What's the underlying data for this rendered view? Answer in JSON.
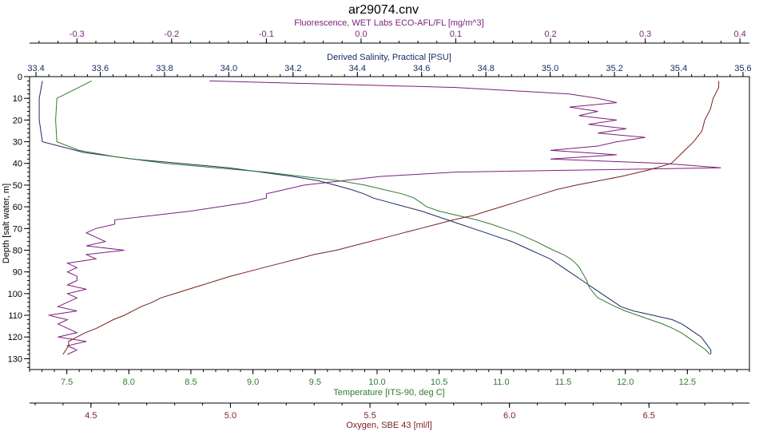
{
  "chart_data": {
    "type": "line",
    "title": "ar29074.cnv",
    "colors": {
      "fluorescence": "#7b1f7b",
      "salinity": "#1c2a66",
      "temperature": "#2e7d2e",
      "oxygen": "#7a1e1e"
    },
    "axes": {
      "fluorescence": {
        "label": "Fluorescence, WET Labs ECO-AFL/FL [mg/m^3]",
        "range": [
          -0.35,
          0.41
        ],
        "ticks": [
          -0.3,
          -0.2,
          -0.1,
          0.0,
          0.1,
          0.2,
          0.3,
          0.4
        ],
        "tick_labels": [
          "-0.3",
          "-0.2",
          "-0.1",
          "0.0",
          "0.1",
          "0.2",
          "0.3",
          "0.4"
        ],
        "placement": "top"
      },
      "salinity": {
        "label": "Derived Salinity, Practical [PSU]",
        "range": [
          33.38,
          35.62
        ],
        "ticks": [
          33.4,
          33.6,
          33.8,
          34.0,
          34.2,
          34.4,
          34.6,
          34.8,
          35.0,
          35.2,
          35.4,
          35.6
        ],
        "tick_labels": [
          "33.4",
          "33.6",
          "33.8",
          "34.0",
          "34.2",
          "34.4",
          "34.6",
          "34.8",
          "35.0",
          "35.2",
          "35.4",
          "35.6"
        ],
        "placement": "top"
      },
      "temperature": {
        "label": "Temperature [ITS-90, deg C]",
        "range": [
          7.2,
          13.0
        ],
        "ticks": [
          7.5,
          8.0,
          8.5,
          9.0,
          9.5,
          10.0,
          10.5,
          11.0,
          11.5,
          12.0,
          12.5
        ],
        "tick_labels": [
          "7.5",
          "8.0",
          "8.5",
          "9.0",
          "9.5",
          "10.0",
          "10.5",
          "11.0",
          "11.5",
          "12.0",
          "12.5"
        ],
        "placement": "bottom"
      },
      "oxygen": {
        "label": "Oxygen, SBE 43 [ml/l]",
        "range": [
          4.28,
          6.86
        ],
        "ticks": [
          4.5,
          5.0,
          5.5,
          6.0,
          6.5
        ],
        "tick_labels": [
          "4.5",
          "5.0",
          "5.5",
          "6.0",
          "6.5"
        ],
        "placement": "bottom"
      },
      "depth": {
        "label": "Depth [salt water, m]",
        "range": [
          0,
          135
        ],
        "ticks": [
          0,
          10,
          20,
          30,
          40,
          50,
          60,
          70,
          80,
          90,
          100,
          110,
          120,
          130
        ],
        "tick_labels": [
          "0",
          "10",
          "20",
          "30",
          "40",
          "50",
          "60",
          "70",
          "80",
          "90",
          "100",
          "110",
          "120",
          "130"
        ],
        "placement": "left",
        "inverted": true
      }
    },
    "series": [
      {
        "key": "fluorescence",
        "axis": "fluorescence",
        "depth": [
          2,
          5,
          8,
          10,
          12,
          14,
          16,
          18,
          20,
          22,
          24,
          26,
          28,
          30,
          32,
          34,
          36,
          38,
          40,
          42,
          44,
          46,
          48,
          50,
          52,
          54,
          56,
          58,
          60,
          62,
          64,
          66,
          68,
          70,
          72,
          74,
          76,
          78,
          80,
          82,
          84,
          86,
          88,
          90,
          92,
          94,
          96,
          98,
          100,
          102,
          104,
          106,
          108,
          110,
          112,
          114,
          116,
          118,
          120,
          122,
          124,
          126,
          128
        ],
        "values": [
          -0.16,
          0.1,
          0.22,
          0.25,
          0.27,
          0.22,
          0.25,
          0.23,
          0.27,
          0.24,
          0.28,
          0.25,
          0.3,
          0.27,
          0.25,
          0.2,
          0.27,
          0.2,
          0.32,
          0.38,
          0.1,
          0.02,
          -0.02,
          -0.06,
          -0.08,
          -0.1,
          -0.1,
          -0.12,
          -0.15,
          -0.18,
          -0.22,
          -0.26,
          -0.26,
          -0.28,
          -0.29,
          -0.28,
          -0.27,
          -0.29,
          -0.25,
          -0.29,
          -0.28,
          -0.31,
          -0.3,
          -0.31,
          -0.3,
          -0.3,
          -0.31,
          -0.29,
          -0.31,
          -0.3,
          -0.31,
          -0.32,
          -0.3,
          -0.33,
          -0.31,
          -0.32,
          -0.31,
          -0.3,
          -0.32,
          -0.29,
          -0.31,
          -0.3,
          -0.31
        ]
      },
      {
        "key": "salinity",
        "axis": "salinity",
        "depth": [
          2,
          10,
          20,
          30,
          35,
          38,
          40,
          42,
          44,
          46,
          48,
          50,
          52,
          54,
          56,
          58,
          60,
          62,
          64,
          66,
          68,
          70,
          72,
          74,
          76,
          78,
          80,
          82,
          84,
          86,
          88,
          90,
          92,
          94,
          96,
          98,
          100,
          102,
          104,
          106,
          108,
          110,
          112,
          114,
          116,
          118,
          120,
          122,
          124,
          126,
          128
        ],
        "values": [
          33.42,
          33.41,
          33.41,
          33.42,
          33.55,
          33.7,
          33.85,
          34.0,
          34.1,
          34.2,
          34.28,
          34.33,
          34.38,
          34.42,
          34.45,
          34.5,
          34.55,
          34.6,
          34.64,
          34.68,
          34.72,
          34.76,
          34.8,
          34.84,
          34.88,
          34.91,
          34.94,
          34.97,
          35.0,
          35.02,
          35.04,
          35.06,
          35.08,
          35.1,
          35.12,
          35.14,
          35.16,
          35.18,
          35.2,
          35.22,
          35.26,
          35.32,
          35.38,
          35.41,
          35.43,
          35.45,
          35.47,
          35.48,
          35.49,
          35.5,
          35.5
        ]
      },
      {
        "key": "temperature",
        "axis": "temperature",
        "depth": [
          2,
          10,
          20,
          30,
          34,
          37,
          40,
          42,
          44,
          46,
          48,
          50,
          52,
          54,
          56,
          58,
          60,
          62,
          64,
          66,
          68,
          70,
          72,
          74,
          76,
          78,
          80,
          82,
          84,
          86,
          88,
          90,
          92,
          94,
          96,
          98,
          100,
          102,
          104,
          106,
          108,
          110,
          112,
          114,
          116,
          118,
          120,
          122,
          124,
          126,
          128
        ],
        "values": [
          7.7,
          7.42,
          7.41,
          7.42,
          7.6,
          7.9,
          8.3,
          8.7,
          9.1,
          9.4,
          9.7,
          9.9,
          10.05,
          10.2,
          10.3,
          10.35,
          10.4,
          10.5,
          10.65,
          10.8,
          10.92,
          11.02,
          11.12,
          11.2,
          11.28,
          11.35,
          11.42,
          11.5,
          11.56,
          11.6,
          11.63,
          11.65,
          11.67,
          11.69,
          11.7,
          11.72,
          11.75,
          11.78,
          11.85,
          11.92,
          12.0,
          12.1,
          12.2,
          12.3,
          12.38,
          12.45,
          12.5,
          12.55,
          12.6,
          12.65,
          12.68
        ]
      },
      {
        "key": "oxygen",
        "axis": "oxygen",
        "depth": [
          2,
          5,
          10,
          15,
          20,
          25,
          30,
          35,
          40,
          43,
          46,
          48,
          50,
          52,
          54,
          56,
          58,
          60,
          62,
          64,
          66,
          68,
          70,
          72,
          74,
          76,
          78,
          80,
          82,
          84,
          86,
          88,
          90,
          92,
          94,
          96,
          98,
          100,
          102,
          104,
          106,
          108,
          110,
          112,
          114,
          116,
          118,
          120,
          122,
          124,
          126,
          128
        ],
        "values": [
          6.75,
          6.75,
          6.73,
          6.72,
          6.7,
          6.69,
          6.66,
          6.62,
          6.58,
          6.5,
          6.4,
          6.32,
          6.24,
          6.17,
          6.12,
          6.07,
          6.02,
          5.97,
          5.92,
          5.87,
          5.8,
          5.74,
          5.68,
          5.62,
          5.56,
          5.5,
          5.44,
          5.38,
          5.3,
          5.24,
          5.18,
          5.12,
          5.06,
          5.0,
          4.95,
          4.9,
          4.85,
          4.8,
          4.75,
          4.72,
          4.68,
          4.65,
          4.62,
          4.58,
          4.55,
          4.52,
          4.48,
          4.45,
          4.42,
          4.42,
          4.41,
          4.4
        ]
      }
    ]
  }
}
